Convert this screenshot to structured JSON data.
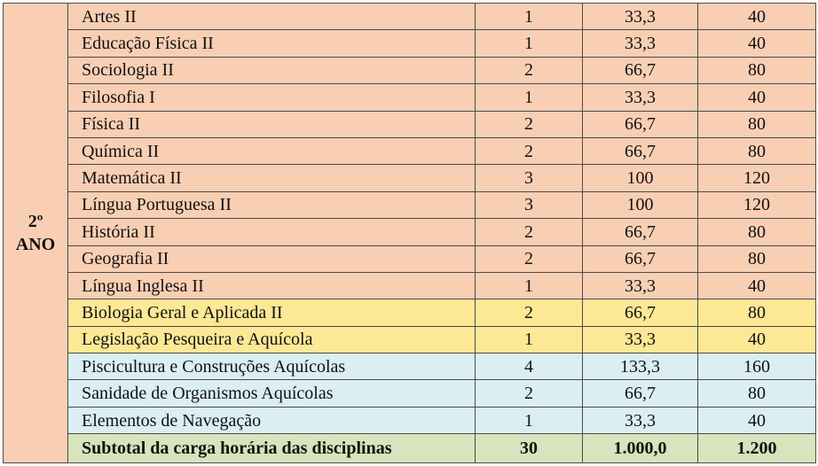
{
  "year_label_line1": "2º",
  "year_label_line2": "ANO",
  "rows": [
    {
      "subject": "Artes II",
      "c1": "1",
      "c2": "33,3",
      "c3": "40",
      "group": "orange"
    },
    {
      "subject": "Educação Física II",
      "c1": "1",
      "c2": "33,3",
      "c3": "40",
      "group": "orange"
    },
    {
      "subject": "Sociologia II",
      "c1": "2",
      "c2": "66,7",
      "c3": "80",
      "group": "orange"
    },
    {
      "subject": "Filosofia I",
      "c1": "1",
      "c2": "33,3",
      "c3": "40",
      "group": "orange"
    },
    {
      "subject": "Física II",
      "c1": "2",
      "c2": "66,7",
      "c3": "80",
      "group": "orange"
    },
    {
      "subject": "Química II",
      "c1": "2",
      "c2": "66,7",
      "c3": "80",
      "group": "orange"
    },
    {
      "subject": "Matemática II",
      "c1": "3",
      "c2": "100",
      "c3": "120",
      "group": "orange"
    },
    {
      "subject": "Língua Portuguesa II",
      "c1": "3",
      "c2": "100",
      "c3": "120",
      "group": "orange"
    },
    {
      "subject": "História II",
      "c1": "2",
      "c2": "66,7",
      "c3": "80",
      "group": "orange"
    },
    {
      "subject": "Geografia II",
      "c1": "2",
      "c2": "66,7",
      "c3": "80",
      "group": "orange"
    },
    {
      "subject": "Língua Inglesa II",
      "c1": "1",
      "c2": "33,3",
      "c3": "40",
      "group": "orange"
    },
    {
      "subject": "Biologia Geral e Aplicada II",
      "c1": "2",
      "c2": "66,7",
      "c3": "80",
      "group": "yellow"
    },
    {
      "subject": "Legislação Pesqueira e Aquícola",
      "c1": "1",
      "c2": "33,3",
      "c3": "40",
      "group": "yellow"
    },
    {
      "subject": "Piscicultura e Construções Aquícolas",
      "c1": "4",
      "c2": "133,3",
      "c3": "160",
      "group": "blue"
    },
    {
      "subject": "Sanidade de Organismos Aquícolas",
      "c1": "2",
      "c2": "66,7",
      "c3": "80",
      "group": "blue"
    },
    {
      "subject": "Elementos de Navegação",
      "c1": "1",
      "c2": "33,3",
      "c3": "40",
      "group": "blue"
    }
  ],
  "subtotal": {
    "label": "Subtotal da carga horária das disciplinas",
    "c1": "30",
    "c2": "1.000,0",
    "c3": "1.200"
  },
  "colors": {
    "orange": "#f9cfb4",
    "yellow": "#fde895",
    "blue": "#dbeef4",
    "green": "#d7e4bd"
  }
}
